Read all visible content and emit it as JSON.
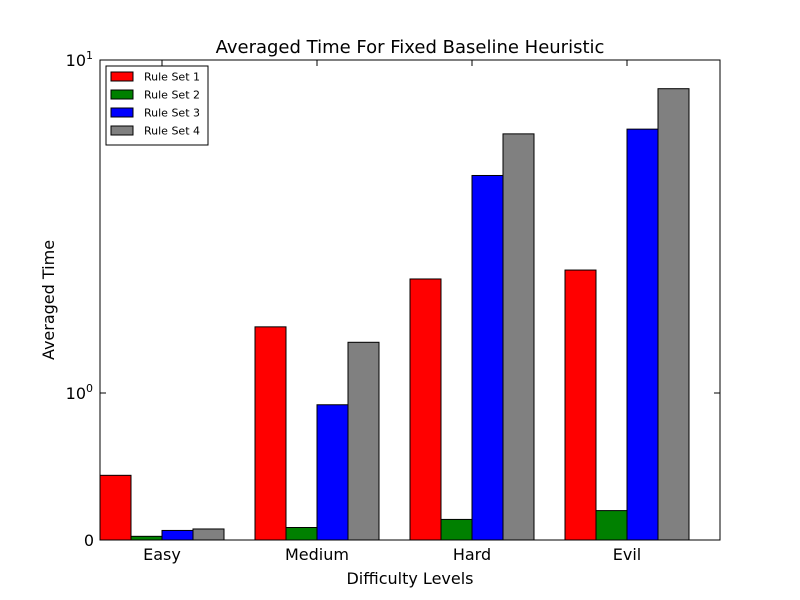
{
  "chart_data": {
    "type": "bar",
    "title": "Averaged Time For Fixed Baseline Heuristic",
    "xlabel": "Difficulty Levels",
    "ylabel": "Averaged Time",
    "y_scale": "symlog",
    "ylim": [
      0,
      10
    ],
    "y_ticks": [
      {
        "value": 0,
        "label": "0"
      },
      {
        "value": 1,
        "base": "10",
        "exp": "0"
      },
      {
        "value": 10,
        "base": "10",
        "exp": "1"
      }
    ],
    "categories": [
      "Easy",
      "Medium",
      "Hard",
      "Evil"
    ],
    "series": [
      {
        "name": "Rule Set 1",
        "color": "#ff0000",
        "values": [
          0.44,
          1.58,
          2.2,
          2.34
        ]
      },
      {
        "name": "Rule Set 2",
        "color": "#008000",
        "values": [
          0.025,
          0.085,
          0.14,
          0.2
        ]
      },
      {
        "name": "Rule Set 3",
        "color": "#0000ff",
        "values": [
          0.065,
          0.92,
          4.5,
          6.2
        ]
      },
      {
        "name": "Rule Set 4",
        "color": "#808080",
        "values": [
          0.075,
          1.42,
          6.0,
          8.2
        ]
      }
    ],
    "legend_position": "top-left",
    "grid": false
  }
}
